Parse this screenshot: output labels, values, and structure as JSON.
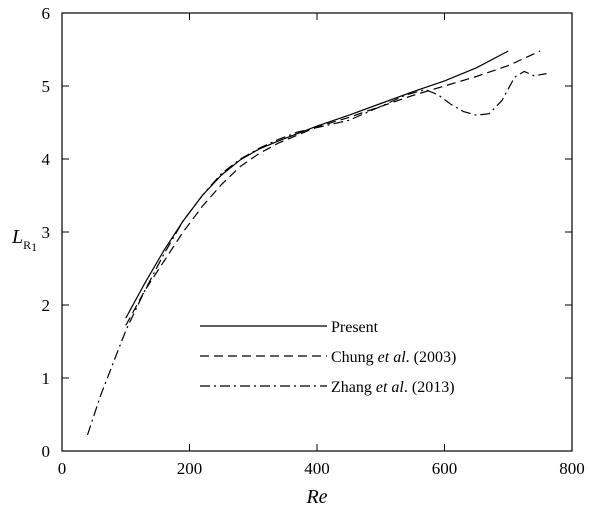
{
  "chart_data": {
    "type": "line",
    "xlabel": "Re",
    "ylabel": {
      "main": "L",
      "sub": "R",
      "subsub": "1"
    },
    "xlim": [
      0,
      800
    ],
    "ylim": [
      0,
      6
    ],
    "x_ticks": [
      "0",
      "200",
      "400",
      "600",
      "800"
    ],
    "y_ticks": [
      "0",
      "1",
      "2",
      "3",
      "4",
      "5",
      "6"
    ],
    "grid": false,
    "legend_position": "bottom-center",
    "series": [
      {
        "name": "Present",
        "style": "solid",
        "x": [
          100,
          130,
          160,
          190,
          220,
          250,
          280,
          310,
          340,
          370,
          400,
          450,
          500,
          550,
          600,
          650,
          700
        ],
        "y": [
          1.82,
          2.3,
          2.75,
          3.15,
          3.5,
          3.78,
          3.99,
          4.14,
          4.25,
          4.35,
          4.45,
          4.6,
          4.76,
          4.92,
          5.07,
          5.25,
          5.48
        ]
      },
      {
        "name_parts": [
          "Chung ",
          "et al",
          ". (2003)"
        ],
        "style": "dashed",
        "x": [
          100,
          130,
          160,
          190,
          220,
          250,
          280,
          310,
          340,
          370,
          400,
          450,
          500,
          550,
          600,
          650,
          700,
          750
        ],
        "y": [
          1.72,
          2.2,
          2.6,
          3.0,
          3.35,
          3.65,
          3.9,
          4.08,
          4.22,
          4.33,
          4.44,
          4.57,
          4.72,
          4.87,
          5.0,
          5.13,
          5.28,
          5.48
        ]
      },
      {
        "name_parts": [
          "Zhang ",
          "et al",
          ". (2013)"
        ],
        "style": "dash-dot",
        "x": [
          40,
          60,
          80,
          100,
          130,
          160,
          190,
          220,
          250,
          280,
          310,
          340,
          370,
          400,
          450,
          500,
          540,
          570,
          590,
          610,
          630,
          650,
          670,
          690,
          710,
          725,
          740,
          760
        ],
        "y": [
          0.22,
          0.75,
          1.2,
          1.65,
          2.2,
          2.7,
          3.15,
          3.5,
          3.8,
          4.0,
          4.15,
          4.27,
          4.37,
          4.43,
          4.53,
          4.72,
          4.88,
          4.95,
          4.88,
          4.75,
          4.65,
          4.6,
          4.62,
          4.8,
          5.12,
          5.2,
          5.14,
          5.17
        ]
      }
    ]
  }
}
